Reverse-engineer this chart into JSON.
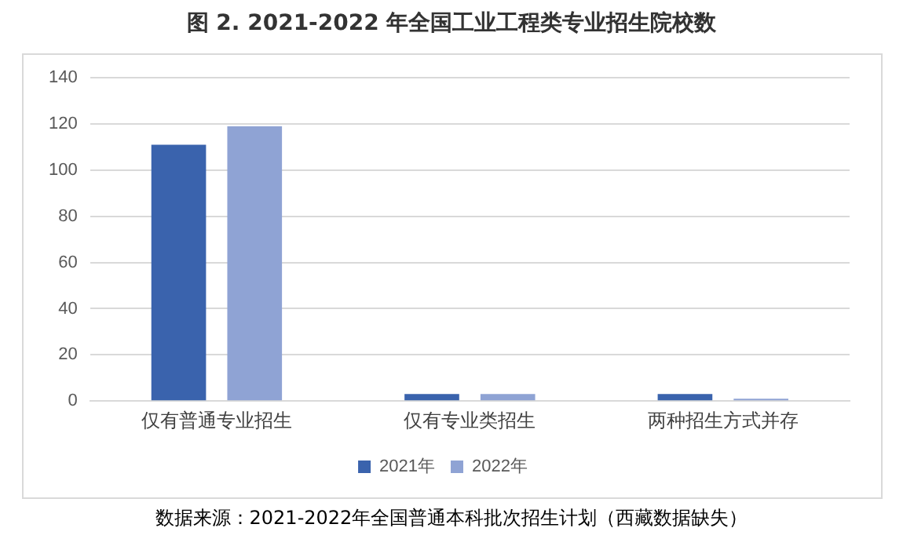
{
  "chart_data": {
    "type": "bar",
    "title": "图 2. 2021-2022 年全国工业工程类专业招生院校数",
    "categories": [
      "仅有普通专业招生",
      "仅有专业类招生",
      "两种招生方式并存"
    ],
    "series": [
      {
        "name": "2021年",
        "color": "#3a63ad",
        "values": [
          111,
          3,
          3
        ]
      },
      {
        "name": "2022年",
        "color": "#8fa3d4",
        "values": [
          119,
          3,
          1
        ]
      }
    ],
    "ylim": [
      0,
      140
    ],
    "yticks": [
      0,
      20,
      40,
      60,
      80,
      100,
      120,
      140
    ],
    "grid": "y",
    "legend": "bottom",
    "annotations": [
      "数据来源：2021-2022年全国普通本科批次招生计划（西藏数据缺失）"
    ]
  }
}
